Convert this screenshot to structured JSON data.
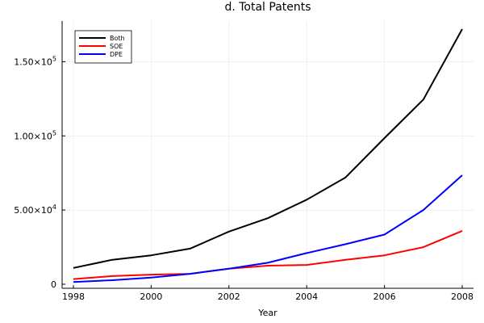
{
  "chart_data": {
    "type": "line",
    "title": "d. Total Patents",
    "xlabel": "Year",
    "ylabel": "",
    "x": [
      1998,
      1999,
      2000,
      2001,
      2002,
      2003,
      2004,
      2005,
      2006,
      2007,
      2008
    ],
    "xlim": [
      1998,
      2008
    ],
    "ylim": [
      0,
      172000
    ],
    "xticks": [
      1998,
      2000,
      2002,
      2004,
      2006,
      2008
    ],
    "yticks": [
      {
        "value": 0,
        "label": "0",
        "exp": ""
      },
      {
        "value": 50000,
        "label": "5.00×10",
        "exp": "4"
      },
      {
        "value": 100000,
        "label": "1.00×10",
        "exp": "5"
      },
      {
        "value": 150000,
        "label": "1.50×10",
        "exp": "5"
      }
    ],
    "grid": true,
    "legend_position": "top-left",
    "series": [
      {
        "name": "Both",
        "color": "#000000",
        "values": [
          11000,
          16500,
          19500,
          24000,
          35500,
          44500,
          57000,
          72000,
          98500,
          124500,
          172000
        ]
      },
      {
        "name": "SOE",
        "color": "#ff0000",
        "values": [
          3500,
          5500,
          6500,
          7000,
          10500,
          12500,
          13000,
          16500,
          19500,
          25000,
          36000
        ]
      },
      {
        "name": "DPE",
        "color": "#0000ff",
        "values": [
          1500,
          2700,
          4500,
          7000,
          10500,
          14500,
          21000,
          27000,
          33500,
          50000,
          73500
        ]
      }
    ]
  }
}
